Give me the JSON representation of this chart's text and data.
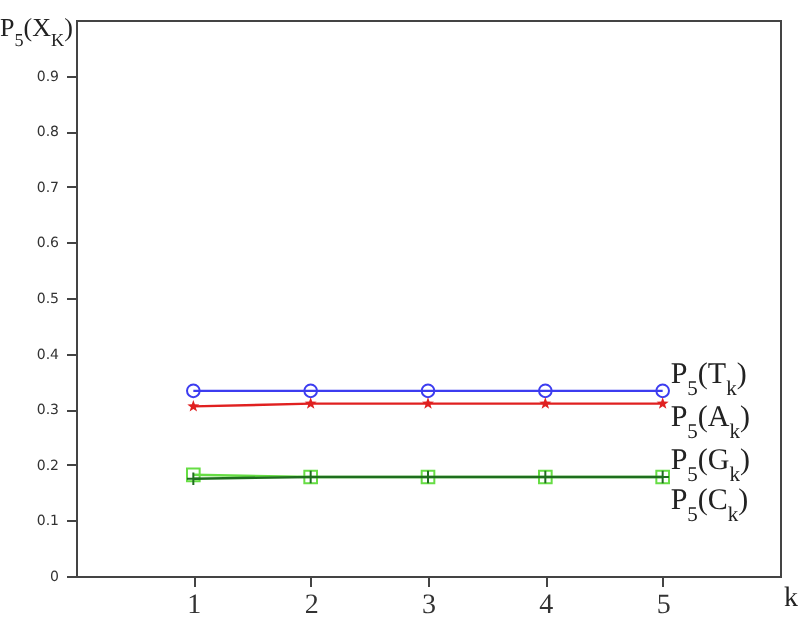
{
  "chart_data": {
    "type": "line",
    "ylabel": "P$_{5}$(X$_{K}$)",
    "xlabel": "k",
    "x": [
      1,
      2,
      3,
      4,
      5
    ],
    "xlim": [
      0,
      6
    ],
    "xticks": [
      1,
      2,
      3,
      4,
      5
    ],
    "ylim": [
      0,
      1
    ],
    "yticks": [
      0,
      0.1,
      0.2,
      0.3,
      0.4,
      0.5,
      0.6,
      0.7,
      0.8,
      0.9
    ],
    "series": [
      {
        "name": "P$_{5}$(T$_{k}$)",
        "color": "#3c3cf0",
        "marker": "circle",
        "values": [
          0.333,
          0.333,
          0.333,
          0.333,
          0.333
        ]
      },
      {
        "name": "P$_{5}$(A$_{k}$)",
        "color": "#e02020",
        "marker": "star",
        "values": [
          0.305,
          0.31,
          0.31,
          0.31,
          0.31
        ]
      },
      {
        "name": "P$_{5}$(G$_{k}$)",
        "color": "#66dd44",
        "marker": "square",
        "values": [
          0.182,
          0.178,
          0.178,
          0.178,
          0.178
        ]
      },
      {
        "name": "P$_{5}$(C$_{k}$)",
        "color": "#1e6e1e",
        "marker": "cross",
        "values": [
          0.175,
          0.178,
          0.178,
          0.178,
          0.178
        ]
      }
    ]
  }
}
